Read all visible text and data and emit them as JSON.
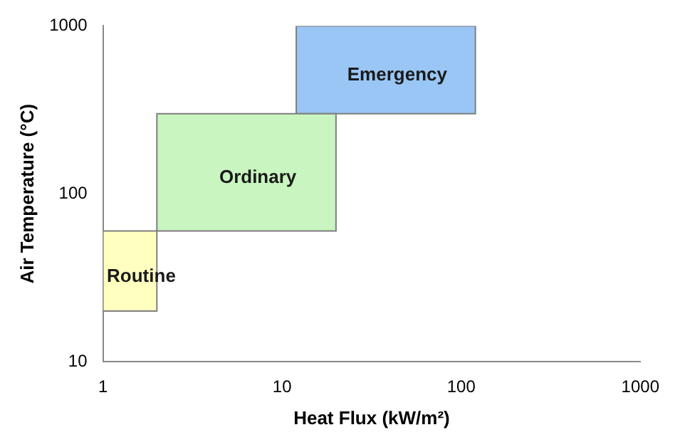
{
  "chart_data": {
    "type": "area",
    "xlabel": "Heat Flux (kW/m²)",
    "ylabel": "Air Temperature (°C)",
    "log": "xy",
    "xlim": [
      1,
      1000
    ],
    "xticks": [
      1,
      10,
      100,
      1000
    ],
    "ylim": [
      10,
      1000
    ],
    "yticks": [
      10,
      100,
      1000
    ],
    "grid": false,
    "legend": false,
    "series": [
      {
        "name": "Routine",
        "color": "#ffffc0",
        "x": [
          1,
          2,
          2,
          1,
          1
        ],
        "values": [
          20,
          20,
          60,
          60,
          20
        ]
      },
      {
        "name": "Ordinary",
        "color": "#c8f5c0",
        "x": [
          2,
          20,
          20,
          2,
          2
        ],
        "values": [
          60,
          60,
          300,
          300,
          60
        ]
      },
      {
        "name": "Emergency",
        "color": "#99c6f5",
        "x": [
          12,
          120,
          120,
          12,
          12
        ],
        "values": [
          300,
          300,
          1000,
          1000,
          300
        ]
      }
    ]
  }
}
